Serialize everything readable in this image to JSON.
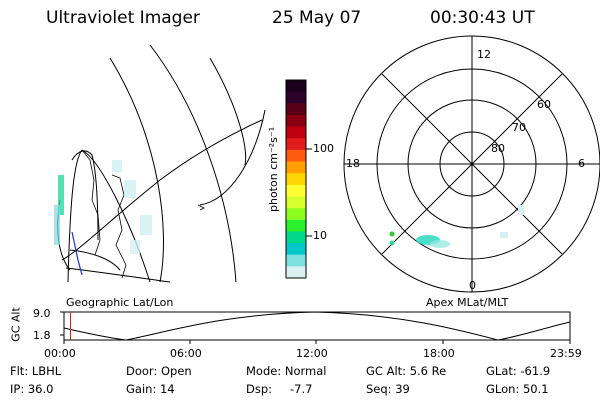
{
  "header": {
    "instrument": "Ultraviolet Imager",
    "date": "25 May 07",
    "time": "00:30:43 UT"
  },
  "colorbar": {
    "unit_label": "photon cm⁻²s⁻¹",
    "ticks": [
      "100",
      "10"
    ],
    "colors": [
      "#1a001a",
      "#2b002b",
      "#5a0014",
      "#8a0010",
      "#c00010",
      "#e21b1b",
      "#ff5a10",
      "#ff9e00",
      "#ffd400",
      "#ffff33",
      "#d6ff2e",
      "#8cff1e",
      "#2cf02c",
      "#00d98a",
      "#00c8c8",
      "#7fe0e0",
      "#d8f0f0"
    ]
  },
  "left_panel": {
    "label": "Geographic Lat/Lon"
  },
  "right_panel": {
    "label": "Apex MLat/MLT",
    "mlt_labels": {
      "top": "12",
      "left": "18",
      "right": "6",
      "bottom": "0"
    },
    "lat_labels": [
      "60",
      "70",
      "80"
    ]
  },
  "altitude_plot": {
    "ylabel": "GC Alt",
    "yticks": [
      "9.0",
      "1.8"
    ],
    "xticks": [
      "00:00",
      "06:00",
      "12:00",
      "18:00",
      "23:59"
    ],
    "current_time_color": "#d02020"
  },
  "info": {
    "flt": "Flt: LBHL",
    "ip": "IP: 36.0",
    "door": "Door: Open",
    "gain": "Gain: 14",
    "mode": "Mode: Normal",
    "dsp_label": "Dsp:",
    "dsp_value": "-7.7",
    "gc_alt": "GC Alt: 5.6 Re",
    "seq": "Seq: 39",
    "glat": "GLat: -61.9",
    "glon": "GLon: 50.1"
  }
}
